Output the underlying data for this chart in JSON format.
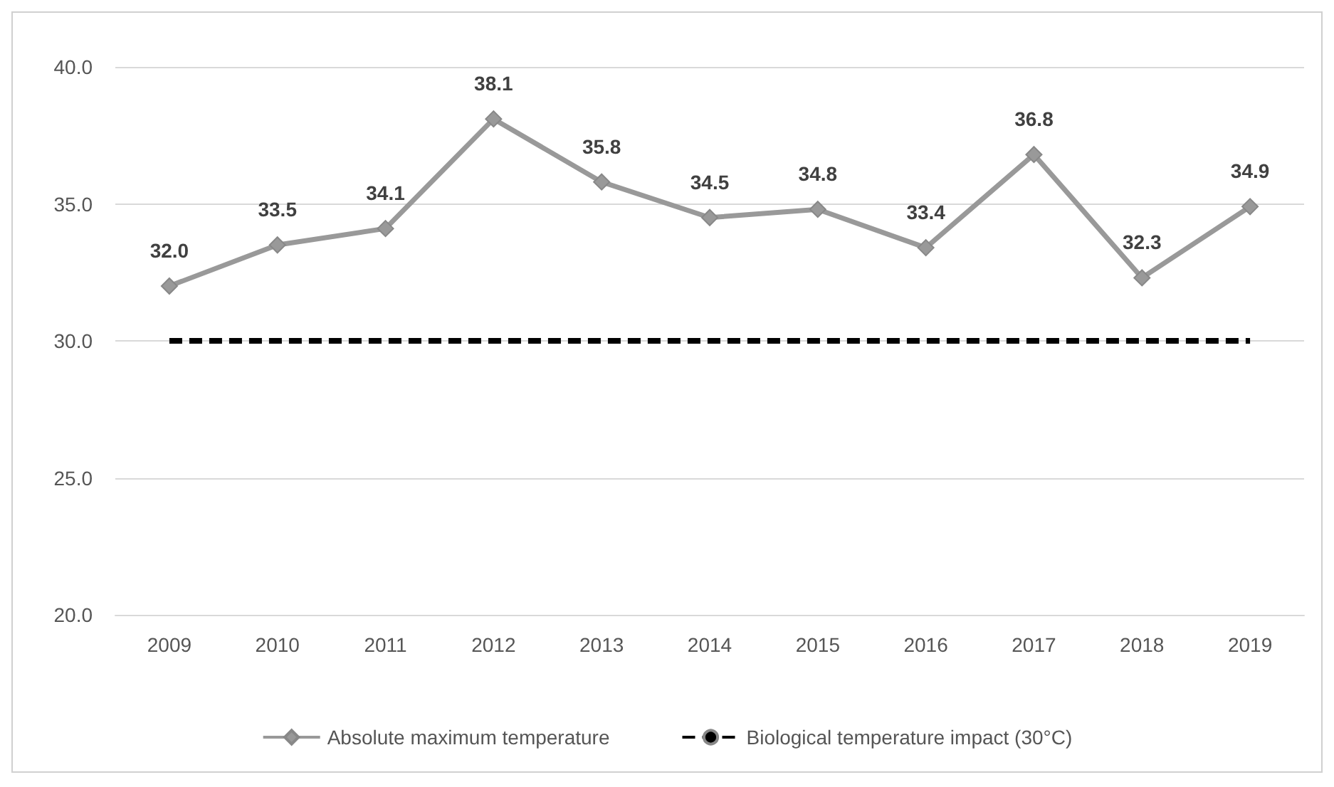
{
  "chart_data": {
    "type": "line",
    "categories": [
      "2009",
      "2010",
      "2011",
      "2012",
      "2013",
      "2014",
      "2015",
      "2016",
      "2017",
      "2018",
      "2019"
    ],
    "series": [
      {
        "name": "Absolute maximum temperature",
        "color": "#999999",
        "marker": "diamond",
        "line_style": "solid",
        "values": [
          32.0,
          33.5,
          34.1,
          38.1,
          35.8,
          34.5,
          34.8,
          33.4,
          36.8,
          32.3,
          34.9
        ],
        "value_labels": [
          "32.0",
          "33.5",
          "34.1",
          "38.1",
          "35.8",
          "34.5",
          "34.8",
          "33.4",
          "36.8",
          "32.3",
          "34.9"
        ]
      },
      {
        "name": "Biological temperature impact (30°C)",
        "color": "#000000",
        "marker": "none",
        "line_style": "dashed",
        "values": [
          30,
          30,
          30,
          30,
          30,
          30,
          30,
          30,
          30,
          30,
          30
        ]
      }
    ],
    "ylim": [
      20,
      40
    ],
    "yticks": [
      {
        "value": 20,
        "label": "20.0"
      },
      {
        "value": 25,
        "label": "25.0"
      },
      {
        "value": 30,
        "label": "30.0"
      },
      {
        "value": 35,
        "label": "35.0"
      },
      {
        "value": 40,
        "label": "40.0"
      }
    ],
    "grid": "y",
    "legend": "bottom"
  }
}
